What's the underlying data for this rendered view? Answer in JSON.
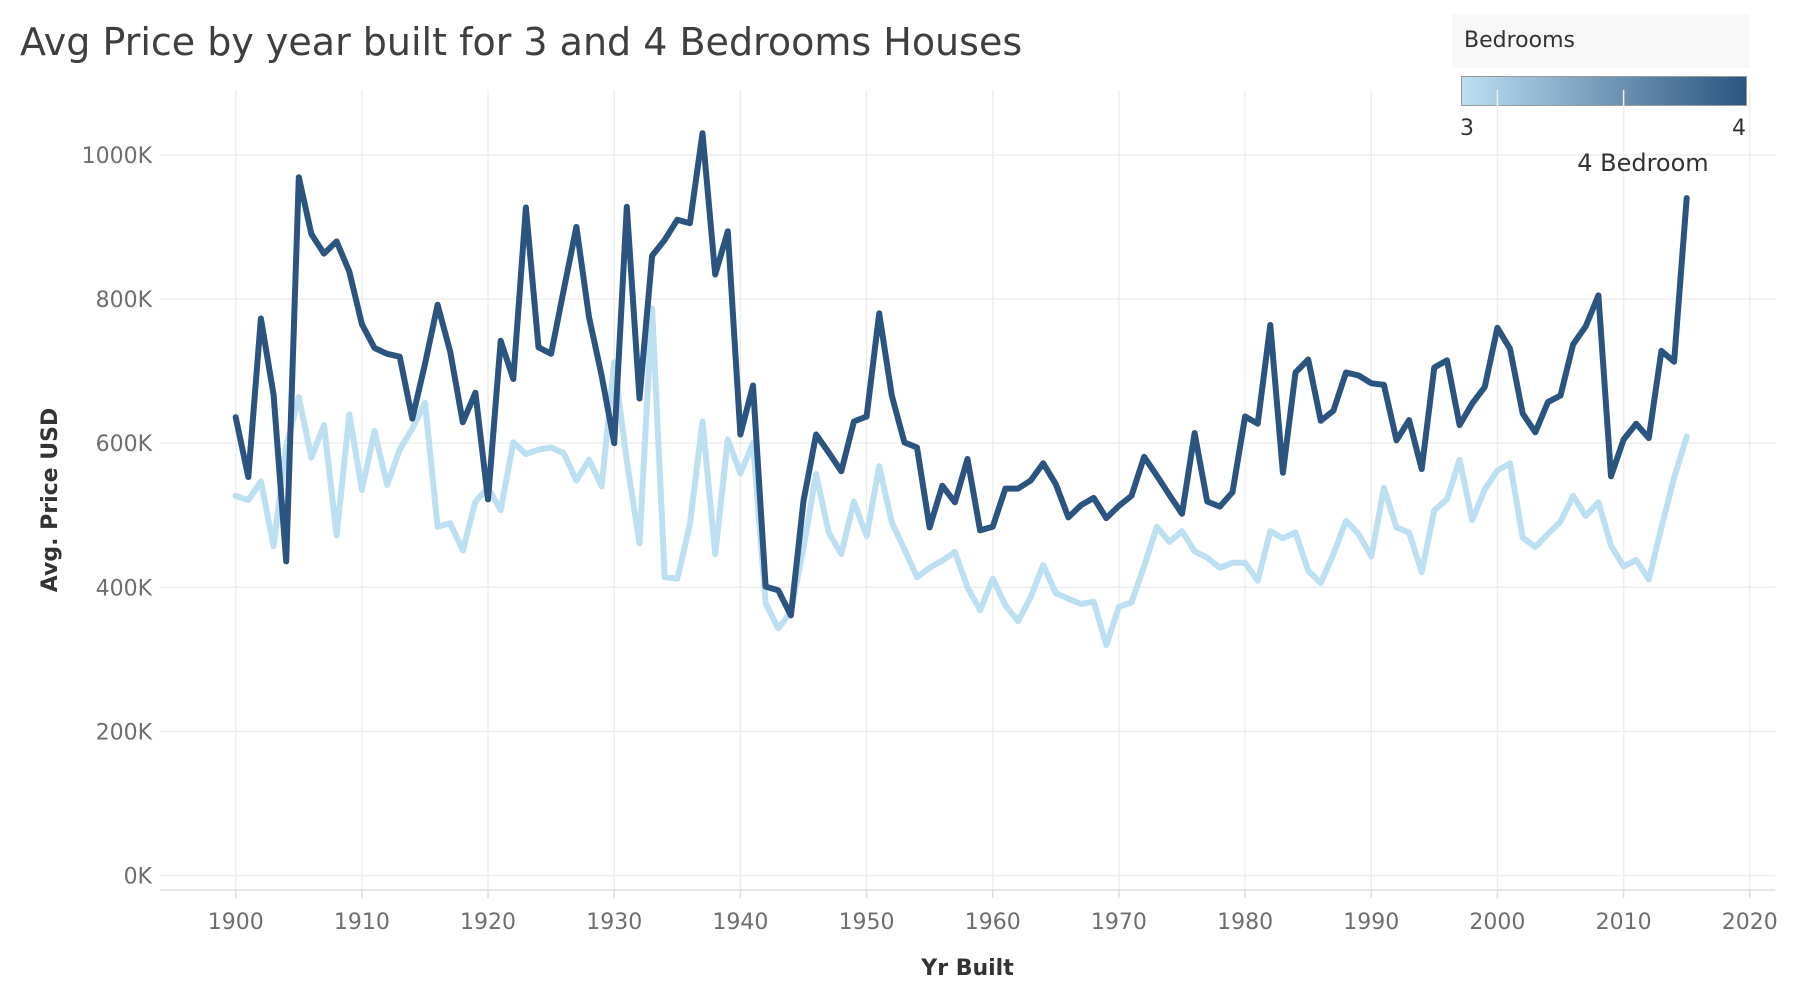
{
  "chart_data": {
    "type": "line",
    "title": "Avg Price by year built for 3 and 4 Bedrooms Houses",
    "xlabel": "Yr Built",
    "ylabel": "Avg. Price USD",
    "xlim": [
      1894,
      2022
    ],
    "ylim": [
      -20000,
      1090000
    ],
    "x_ticks": [
      1900,
      1910,
      1920,
      1930,
      1940,
      1950,
      1960,
      1970,
      1980,
      1990,
      2000,
      2010,
      2020
    ],
    "x_tick_labels": [
      "1900",
      "1910",
      "1920",
      "1930",
      "1940",
      "1950",
      "1960",
      "1970",
      "1980",
      "1990",
      "2000",
      "2010",
      "2020"
    ],
    "y_ticks": [
      0,
      200000,
      400000,
      600000,
      800000,
      1000000
    ],
    "y_tick_labels": [
      "0K",
      "200K",
      "400K",
      "600K",
      "800K",
      "1000K"
    ],
    "grid": true,
    "legend": {
      "title": "Bedrooms",
      "type": "continuous-color",
      "min_label": "3",
      "max_label": "4",
      "colors": [
        "#bcdff2",
        "#2b5580"
      ],
      "placement": "top-right"
    },
    "x": [
      1900,
      1901,
      1902,
      1903,
      1904,
      1905,
      1906,
      1907,
      1908,
      1909,
      1910,
      1911,
      1912,
      1913,
      1914,
      1915,
      1916,
      1917,
      1918,
      1919,
      1920,
      1921,
      1922,
      1923,
      1924,
      1925,
      1926,
      1927,
      1928,
      1929,
      1930,
      1931,
      1932,
      1933,
      1934,
      1935,
      1936,
      1937,
      1938,
      1939,
      1940,
      1941,
      1942,
      1943,
      1944,
      1945,
      1946,
      1947,
      1948,
      1949,
      1950,
      1951,
      1952,
      1953,
      1954,
      1955,
      1956,
      1957,
      1958,
      1959,
      1960,
      1961,
      1962,
      1963,
      1964,
      1965,
      1966,
      1967,
      1968,
      1969,
      1970,
      1971,
      1972,
      1973,
      1974,
      1975,
      1976,
      1977,
      1978,
      1979,
      1980,
      1981,
      1982,
      1983,
      1984,
      1985,
      1986,
      1987,
      1988,
      1989,
      1990,
      1991,
      1992,
      1993,
      1994,
      1995,
      1996,
      1997,
      1998,
      1999,
      2000,
      2001,
      2002,
      2003,
      2004,
      2005,
      2006,
      2007,
      2008,
      2009,
      2010,
      2011,
      2012,
      2013,
      2014,
      2015
    ],
    "series": [
      {
        "color": "#bcdff2",
        "values": [
          527000,
          521000,
          547000,
          457000,
          596000,
          664000,
          580000,
          625000,
          472000,
          640000,
          535000,
          617000,
          542000,
          591000,
          620000,
          656000,
          484000,
          489000,
          451000,
          519000,
          538000,
          507000,
          601000,
          585000,
          591000,
          594000,
          586000,
          548000,
          577000,
          540000,
          712000,
          575000,
          461000,
          787000,
          414000,
          412000,
          487000,
          630000,
          446000,
          605000,
          558000,
          600000,
          378000,
          343000,
          366000,
          455000,
          557000,
          476000,
          446000,
          519000,
          471000,
          568000,
          490000,
          453000,
          414000,
          427000,
          437000,
          449000,
          400000,
          368000,
          412000,
          375000,
          353000,
          386000,
          431000,
          392000,
          384000,
          377000,
          380000,
          320000,
          373000,
          379000,
          429000,
          484000,
          463000,
          478000,
          450000,
          441000,
          427000,
          434000,
          434000,
          409000,
          478000,
          468000,
          476000,
          423000,
          406000,
          446000,
          492000,
          474000,
          443000,
          538000,
          483000,
          476000,
          421000,
          507000,
          522000,
          577000,
          493000,
          536000,
          562000,
          572000,
          469000,
          456000,
          474000,
          491000,
          527000,
          499000,
          518000,
          458000,
          429000,
          438000,
          411000,
          483000,
          552000,
          609000
        ]
      },
      {
        "name": "4 Bedroom",
        "color": "#2b5580",
        "values": [
          636000,
          553000,
          773000,
          667000,
          436000,
          969000,
          890000,
          863000,
          880000,
          838000,
          765000,
          732000,
          724000,
          720000,
          634000,
          710000,
          792000,
          727000,
          629000,
          670000,
          522000,
          742000,
          689000,
          927000,
          733000,
          724000,
          813000,
          900000,
          775000,
          694000,
          600000,
          928000,
          662000,
          860000,
          882000,
          910000,
          905000,
          1030000,
          834000,
          894000,
          612000,
          680000,
          401000,
          396000,
          361000,
          520000,
          612000,
          587000,
          561000,
          630000,
          637000,
          780000,
          666000,
          601000,
          594000,
          483000,
          541000,
          518000,
          578000,
          479000,
          484000,
          537000,
          537000,
          548000,
          572000,
          543000,
          497000,
          514000,
          524000,
          496000,
          513000,
          527000,
          581000,
          555000,
          528000,
          502000,
          614000,
          519000,
          512000,
          532000,
          637000,
          627000,
          764000,
          559000,
          698000,
          716000,
          631000,
          645000,
          698000,
          694000,
          683000,
          681000,
          604000,
          632000,
          564000,
          705000,
          715000,
          625000,
          655000,
          678000,
          760000,
          731000,
          641000,
          615000,
          657000,
          666000,
          737000,
          762000,
          805000,
          554000,
          605000,
          627000,
          607000,
          728000,
          713000,
          940000
        ]
      }
    ]
  }
}
